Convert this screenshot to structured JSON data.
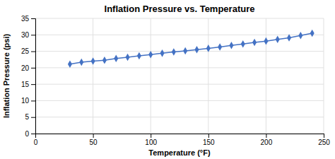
{
  "chart_data": {
    "type": "line",
    "title": "Inflation Pressure vs. Temperature",
    "xlabel": "Temperature (°F)",
    "ylabel": "Inflation Pressure (psi)",
    "x": [
      30,
      40,
      50,
      60,
      70,
      80,
      90,
      100,
      110,
      120,
      130,
      140,
      150,
      160,
      170,
      180,
      190,
      200,
      210,
      220,
      230,
      240
    ],
    "values": [
      21.1,
      21.7,
      22.0,
      22.3,
      22.8,
      23.2,
      23.6,
      24.0,
      24.4,
      24.8,
      25.1,
      25.5,
      25.9,
      26.3,
      26.8,
      27.2,
      27.7,
      28.1,
      28.6,
      29.1,
      29.8,
      30.5
    ],
    "color": "#4472C4",
    "marker": "diamond",
    "xlim": [
      0,
      250
    ],
    "ylim": [
      0,
      35
    ],
    "xticks": [
      0,
      50,
      100,
      150,
      200,
      250
    ],
    "yticks": [
      0,
      5,
      10,
      15,
      20,
      25,
      30,
      35
    ],
    "grid": true
  }
}
